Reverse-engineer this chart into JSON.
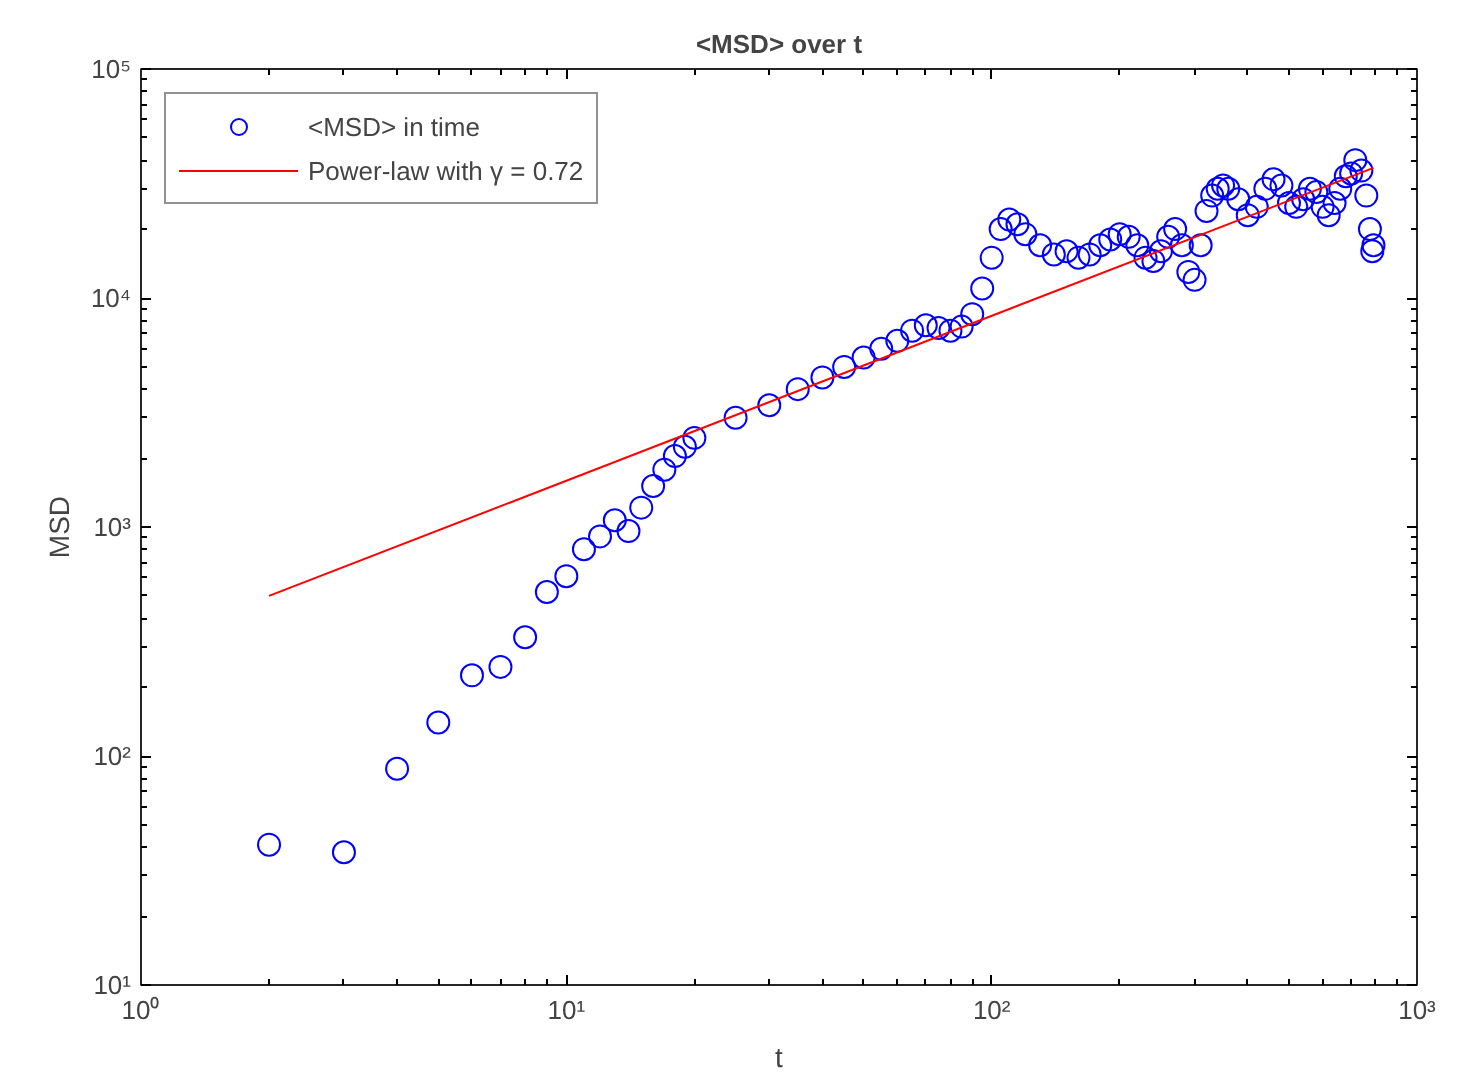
{
  "chart_data": {
    "type": "scatter",
    "title": "<MSD> over t",
    "xlabel": "t",
    "ylabel": "MSD",
    "log": "xy",
    "grid": false,
    "legend": "top left",
    "marker": "circle",
    "xlim": [
      1,
      1000
    ],
    "ylim": [
      10,
      100000
    ],
    "xticks": [
      {
        "value": 1,
        "label": "10⁰"
      },
      {
        "value": 10,
        "label": "10¹"
      },
      {
        "value": 100,
        "label": "10²"
      },
      {
        "value": 1000,
        "label": "10³"
      }
    ],
    "yticks": [
      {
        "value": 10,
        "label": "10¹"
      },
      {
        "value": 100,
        "label": "10²"
      },
      {
        "value": 1000,
        "label": "10³"
      },
      {
        "value": 10000,
        "label": "10⁴"
      },
      {
        "value": 100000,
        "label": "10⁵"
      }
    ],
    "series": [
      {
        "name": "<MSD> in time",
        "color": "#0000ff",
        "x": [
          2,
          3,
          4,
          5,
          6,
          7,
          8,
          9,
          10,
          11,
          12,
          13,
          14,
          15,
          16,
          17,
          18,
          19,
          20,
          25,
          30,
          35,
          40,
          45,
          50,
          55,
          60,
          65,
          70,
          75,
          80,
          85,
          90,
          95,
          100,
          105,
          110,
          115,
          120,
          130,
          140,
          150,
          160,
          170,
          180,
          190,
          200,
          210,
          220,
          230,
          240,
          250,
          260,
          270,
          280,
          290,
          300,
          310,
          320,
          330,
          340,
          350,
          360,
          380,
          400,
          420,
          440,
          460,
          480,
          500,
          520,
          540,
          560,
          580,
          600,
          620,
          640,
          660,
          680,
          700,
          716,
          740,
          760,
          775,
          785,
          790
        ],
        "values": [
          41,
          38,
          88,
          140,
          225,
          245,
          330,
          520,
          610,
          800,
          910,
          1070,
          960,
          1215,
          1510,
          1780,
          2040,
          2240,
          2450,
          3000,
          3400,
          4000,
          4500,
          5000,
          5500,
          6000,
          6500,
          7200,
          7600,
          7400,
          7200,
          7500,
          8500,
          11000,
          15000,
          20000,
          22000,
          21000,
          19000,
          17000,
          15500,
          16000,
          15000,
          15500,
          17000,
          18000,
          19000,
          18500,
          17000,
          15000,
          14500,
          16000,
          18500,
          20000,
          17000,
          13000,
          12000,
          17000,
          24000,
          28000,
          30000,
          31000,
          30000,
          27000,
          23000,
          25000,
          30000,
          33000,
          31000,
          26000,
          25000,
          27000,
          30000,
          29000,
          25000,
          23000,
          26000,
          30000,
          34000,
          35000,
          40000,
          36000,
          28000,
          20000,
          16000,
          17000
        ]
      },
      {
        "name": "Power-law with γ = 0.72",
        "type": "line",
        "color": "#ff0000",
        "marker": "none",
        "x": [
          2,
          790
        ],
        "values": [
          500,
          37000
        ]
      }
    ]
  }
}
